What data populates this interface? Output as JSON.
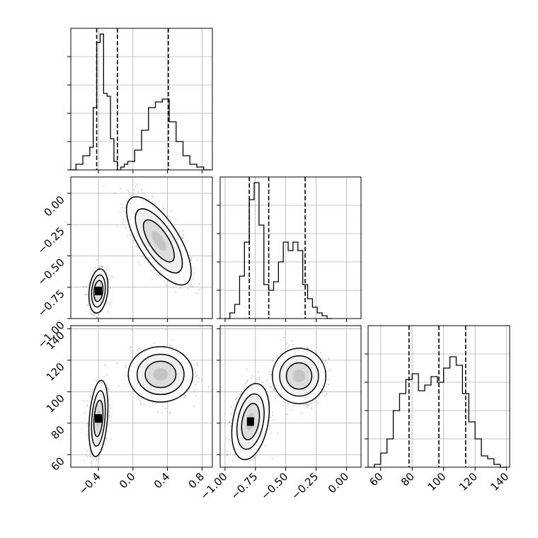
{
  "chart_data": [
    {
      "type": "histogram",
      "variable_index": 0,
      "xlim": [
        -0.7,
        0.92
      ],
      "grid": true,
      "bins": [
        {
          "x": -0.74,
          "count": 0
        },
        {
          "x": -0.66,
          "count": 2
        },
        {
          "x": -0.58,
          "count": 5
        },
        {
          "x": -0.5,
          "count": 8
        },
        {
          "x": -0.46,
          "count": 22
        },
        {
          "x": -0.42,
          "count": 45
        },
        {
          "x": -0.38,
          "count": 48
        },
        {
          "x": -0.34,
          "count": 27
        },
        {
          "x": -0.3,
          "count": 26
        },
        {
          "x": -0.26,
          "count": 11
        },
        {
          "x": -0.22,
          "count": 3
        },
        {
          "x": -0.18,
          "count": 0
        },
        {
          "x": -0.14,
          "count": 1
        },
        {
          "x": -0.1,
          "count": 2
        },
        {
          "x": -0.06,
          "count": 3
        },
        {
          "x": 0.02,
          "count": 7
        },
        {
          "x": 0.1,
          "count": 14
        },
        {
          "x": 0.18,
          "count": 22
        },
        {
          "x": 0.26,
          "count": 24
        },
        {
          "x": 0.34,
          "count": 25
        },
        {
          "x": 0.42,
          "count": 17
        },
        {
          "x": 0.5,
          "count": 10
        },
        {
          "x": 0.58,
          "count": 5
        },
        {
          "x": 0.66,
          "count": 2
        },
        {
          "x": 0.74,
          "count": 1
        },
        {
          "x": 0.82,
          "count": 0
        }
      ],
      "quantile_lines": [
        -0.42,
        -0.18,
        0.41
      ]
    },
    {
      "type": "histogram",
      "variable_index": 1,
      "xlim": [
        -1.04,
        0.12
      ],
      "ylim": [
        -1.0,
        0.15
      ],
      "grid": true,
      "bins": [
        {
          "x": -1.0,
          "count": 0
        },
        {
          "x": -0.96,
          "count": 2
        },
        {
          "x": -0.92,
          "count": 5
        },
        {
          "x": -0.88,
          "count": 15
        },
        {
          "x": -0.84,
          "count": 27
        },
        {
          "x": -0.8,
          "count": 42
        },
        {
          "x": -0.76,
          "count": 48
        },
        {
          "x": -0.72,
          "count": 33
        },
        {
          "x": -0.68,
          "count": 12
        },
        {
          "x": -0.64,
          "count": 10
        },
        {
          "x": -0.6,
          "count": 13
        },
        {
          "x": -0.56,
          "count": 20
        },
        {
          "x": -0.52,
          "count": 27
        },
        {
          "x": -0.48,
          "count": 24
        },
        {
          "x": -0.44,
          "count": 27
        },
        {
          "x": -0.4,
          "count": 24
        },
        {
          "x": -0.36,
          "count": 12
        },
        {
          "x": -0.32,
          "count": 7
        },
        {
          "x": -0.28,
          "count": 4
        },
        {
          "x": -0.24,
          "count": 2
        },
        {
          "x": -0.2,
          "count": 1
        },
        {
          "x": -0.16,
          "count": 0
        }
      ],
      "quantile_lines": [
        -0.8,
        -0.64,
        -0.34
      ]
    },
    {
      "type": "histogram",
      "variable_index": 2,
      "xlim": [
        52,
        142
      ],
      "ylim": [
        52,
        142
      ],
      "grid": true,
      "bins": [
        {
          "x": 52,
          "count": 0
        },
        {
          "x": 56,
          "count": 1
        },
        {
          "x": 60,
          "count": 5
        },
        {
          "x": 64,
          "count": 10
        },
        {
          "x": 68,
          "count": 20
        },
        {
          "x": 72,
          "count": 26
        },
        {
          "x": 76,
          "count": 31
        },
        {
          "x": 80,
          "count": 33
        },
        {
          "x": 84,
          "count": 27
        },
        {
          "x": 88,
          "count": 29
        },
        {
          "x": 92,
          "count": 32
        },
        {
          "x": 96,
          "count": 30
        },
        {
          "x": 100,
          "count": 35
        },
        {
          "x": 104,
          "count": 39
        },
        {
          "x": 108,
          "count": 36
        },
        {
          "x": 112,
          "count": 26
        },
        {
          "x": 116,
          "count": 16
        },
        {
          "x": 120,
          "count": 10
        },
        {
          "x": 124,
          "count": 4
        },
        {
          "x": 128,
          "count": 3
        },
        {
          "x": 132,
          "count": 1
        },
        {
          "x": 136,
          "count": 0
        }
      ],
      "quantile_lines": [
        78,
        97,
        114
      ]
    },
    {
      "type": "scatter",
      "x_variable_index": 0,
      "y_variable_index": 1,
      "clusters": [
        {
          "mean": [
            -0.4,
            -0.78
          ],
          "std": [
            0.05,
            0.08
          ],
          "rho": 0.2
        },
        {
          "mean": [
            0.3,
            -0.38
          ],
          "std": [
            0.17,
            0.16
          ],
          "rho": -0.7
        }
      ]
    },
    {
      "type": "scatter",
      "x_variable_index": 0,
      "y_variable_index": 2,
      "clusters": [
        {
          "mean": [
            -0.4,
            83
          ],
          "std": [
            0.05,
            11
          ],
          "rho": 0.3
        },
        {
          "mean": [
            0.32,
            111
          ],
          "std": [
            0.17,
            8
          ],
          "rho": 0
        }
      ]
    },
    {
      "type": "scatter",
      "x_variable_index": 1,
      "y_variable_index": 2,
      "clusters": [
        {
          "mean": [
            -0.79,
            81
          ],
          "std": [
            0.07,
            11
          ],
          "rho": 0.3
        },
        {
          "mean": [
            -0.39,
            110
          ],
          "std": [
            0.1,
            8
          ],
          "rho": 0
        }
      ]
    }
  ],
  "ticks": {
    "var0": [
      "−0.4",
      "0.0",
      "0.4",
      "0.8"
    ],
    "var1": [
      "−1.00",
      "−0.75",
      "−0.50",
      "−0.25",
      "0.00"
    ],
    "var2_x": [
      "60",
      "80",
      "100",
      "120",
      "140"
    ],
    "var2_y": [
      "60",
      "80",
      "100",
      "120",
      "140"
    ]
  },
  "colors": {
    "line": "#000000",
    "scatter": "#7f7f7f",
    "grid": "#b0b0b0",
    "fill_levels": [
      "#ffffff",
      "#e6e6e6",
      "#c8c8c8",
      "#9a9a9a",
      "#5a5a5a",
      "#000000"
    ]
  }
}
